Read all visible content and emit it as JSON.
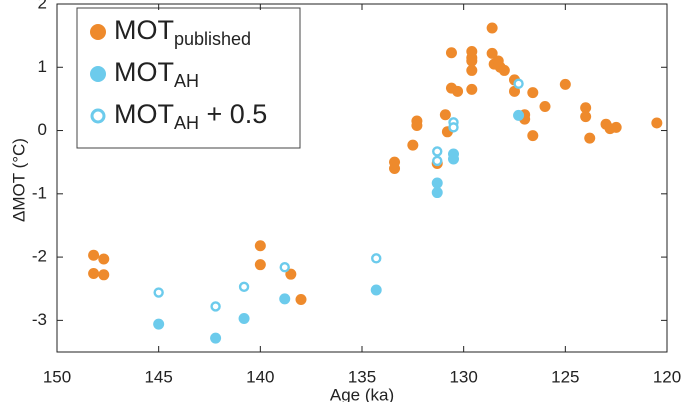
{
  "chart_data": {
    "type": "scatter",
    "xlabel": "Age (ka)",
    "ylabel": "ΔMOT (°C)",
    "xlim": [
      150,
      120
    ],
    "ylim": [
      -3.5,
      2
    ],
    "xticks": [
      150,
      145,
      140,
      135,
      130,
      125,
      120
    ],
    "yticks": [
      -3,
      -2,
      -1,
      0,
      1,
      2
    ],
    "x_reversed": true,
    "grid": false,
    "legend": "upper left",
    "series": [
      {
        "name": "MOT",
        "subscript": "published",
        "color": "#ee8a2c",
        "marker": "filled",
        "x": [
          148.2,
          148.2,
          147.7,
          147.7,
          140.0,
          140.0,
          138.5,
          138.0,
          133.4,
          133.4,
          132.5,
          132.3,
          132.3,
          131.3,
          130.9,
          130.8,
          130.6,
          130.6,
          130.3,
          129.6,
          129.6,
          129.6,
          129.6,
          129.6,
          128.6,
          128.6,
          128.5,
          128.3,
          128.2,
          128.0,
          127.5,
          127.5,
          127.0,
          127.0,
          126.6,
          126.6,
          126.0,
          125.0,
          124.0,
          124.0,
          123.8,
          123.0,
          122.8,
          122.5,
          120.5
        ],
        "values": [
          -1.97,
          -2.26,
          -2.03,
          -2.28,
          -1.82,
          -2.12,
          -2.27,
          -2.67,
          -0.5,
          -0.6,
          -0.23,
          0.15,
          0.08,
          -0.52,
          0.25,
          -0.02,
          1.23,
          0.67,
          0.62,
          1.25,
          1.15,
          1.1,
          0.95,
          0.65,
          1.62,
          1.22,
          1.05,
          1.1,
          1.0,
          0.95,
          0.62,
          0.8,
          0.25,
          0.18,
          -0.08,
          0.6,
          0.38,
          0.73,
          0.36,
          0.22,
          -0.12,
          0.1,
          0.03,
          0.05,
          0.12
        ]
      },
      {
        "name": "MOT",
        "subscript": "AH",
        "color": "#6ccbec",
        "marker": "filled",
        "x": [
          145.0,
          142.2,
          140.8,
          138.8,
          134.3,
          131.3,
          131.3,
          130.5,
          130.5,
          127.3
        ],
        "values": [
          -3.06,
          -3.28,
          -2.97,
          -2.66,
          -2.52,
          -0.83,
          -0.98,
          -0.37,
          -0.45,
          0.24
        ]
      },
      {
        "name": "MOT",
        "subscript": "AH",
        "suffix": " + 0.5",
        "color": "#6ccbec",
        "marker": "open",
        "x": [
          145.0,
          142.2,
          140.8,
          138.8,
          134.3,
          131.3,
          131.3,
          130.5,
          130.5,
          127.3
        ],
        "values": [
          -2.56,
          -2.78,
          -2.47,
          -2.16,
          -2.02,
          -0.33,
          -0.48,
          0.13,
          0.05,
          0.74
        ]
      }
    ]
  }
}
